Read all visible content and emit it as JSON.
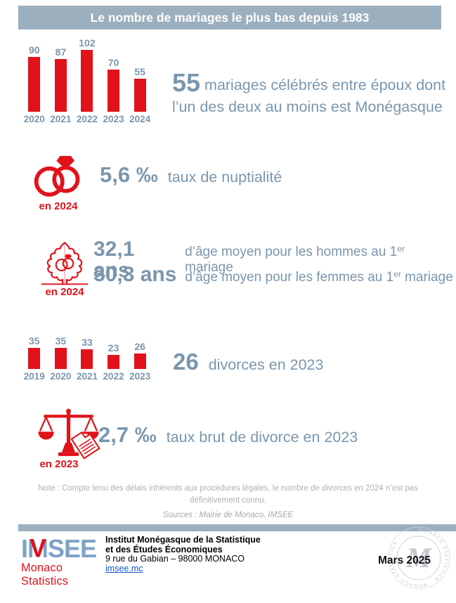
{
  "title_banner": "Le nombre de mariages le plus bas depuis 1983",
  "colors": {
    "accent_red": "#E2121B",
    "blue_gray_text": "#7A96AE",
    "band_blue_gray": "#9CAFBE",
    "note_gray": "#AFAFAF"
  },
  "chart_data": [
    {
      "type": "bar",
      "name": "mariages-par-annee",
      "categories": [
        "2020",
        "2021",
        "2022",
        "2023",
        "2024"
      ],
      "values": [
        90,
        87,
        102,
        70,
        55
      ],
      "bar_color": "#E2121B",
      "label_color": "#7A96AE",
      "value_labels": "above bars",
      "ylim": [
        0,
        102
      ]
    },
    {
      "type": "bar",
      "name": "divorces-par-annee",
      "categories": [
        "2019",
        "2020",
        "2021",
        "2022",
        "2023"
      ],
      "values": [
        35,
        35,
        33,
        23,
        26
      ],
      "bar_color": "#E2121B",
      "label_color": "#7A96AE",
      "value_labels": "above bars",
      "ylim": [
        0,
        35
      ]
    }
  ],
  "stats": {
    "marriages": {
      "value": "55",
      "label": "mariages célébrés entre époux dont l’un des deux au moins est Monégasque"
    },
    "nuptiality": {
      "value": "5,6 ‰",
      "label": "taux de nuptialité",
      "badge": "en 2024"
    },
    "age_men": {
      "value": "32,1 ans",
      "label_pre": "d’âge moyen pour les hommes au 1",
      "sup": "er",
      "label_post": " mariage"
    },
    "age_women": {
      "value": "30,3 ans",
      "label_pre": "d’âge moyen pour les femmes au 1",
      "sup": "er",
      "label_post": " mariage"
    },
    "ages_badge": "en 2024",
    "divorces": {
      "value": "26",
      "label": "divorces en 2023"
    },
    "divorce_rate": {
      "value": "2,7 ‰",
      "label": "taux brut de divorce en 2023",
      "badge": "en 2023"
    }
  },
  "note": {
    "text": "Note : Compte tenu des délais inhérents aux procédures légales, le nombre de divorces en 2024 n’est pas définitivement connu.",
    "sources": "Sources : Mairie de Monaco, IMSEE"
  },
  "footer": {
    "logo_text": "IMSEE",
    "logo_accent": "V",
    "logo_subtitle": "Monaco Statistics",
    "org_line1": "Institut Monégasque de la Statistique",
    "org_line2": "et des Études Économiques",
    "address": "9 rue du Gabian – 98000 MONACO",
    "website": "imsee.mc",
    "date": "Mars 2025",
    "seal_text": "MONACO STATISTICS · MONACO STATISTICS ·",
    "seal_letter": "M"
  }
}
